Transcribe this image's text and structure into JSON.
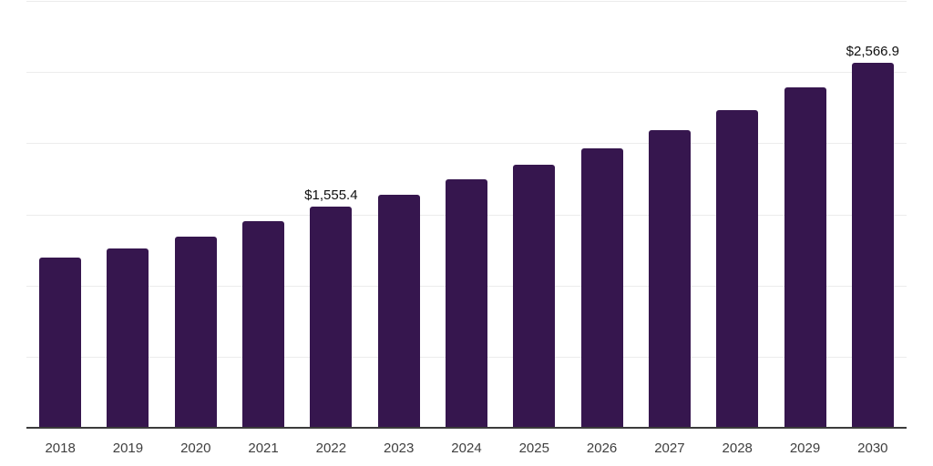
{
  "chart_data": {
    "type": "bar",
    "categories": [
      "2018",
      "2019",
      "2020",
      "2021",
      "2022",
      "2023",
      "2024",
      "2025",
      "2026",
      "2027",
      "2028",
      "2029",
      "2030"
    ],
    "values": [
      1198.6,
      1262.0,
      1345.0,
      1451.0,
      1555.4,
      1639.0,
      1747.0,
      1846.0,
      1966.0,
      2093.0,
      2233.0,
      2393.0,
      2566.9
    ],
    "data_labels": [
      {
        "index": 4,
        "text": "$1,555.4"
      },
      {
        "index": 12,
        "text": "$2,566.9"
      }
    ],
    "title": "",
    "xlabel": "",
    "ylabel": "",
    "ylim": [
      0,
      3000
    ],
    "gridline_interval": 500,
    "grid": true,
    "legend": false,
    "colors": {
      "bar": "#36164e",
      "gridline": "#ececec",
      "axis_line": "#3b3b3b",
      "tick_label": "#3f3f3f",
      "data_label": "#0f0f0f",
      "background": "#ffffff"
    }
  }
}
